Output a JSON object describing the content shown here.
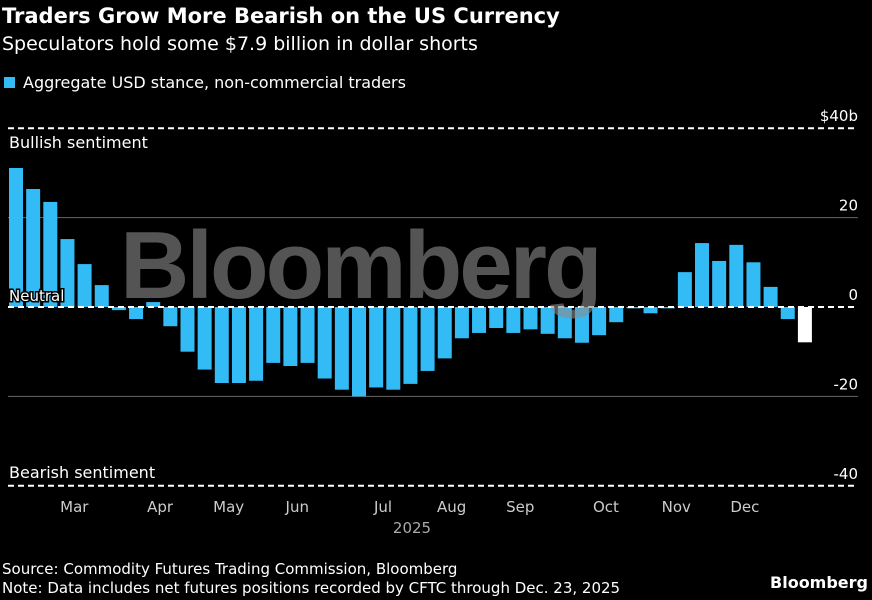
{
  "title": "Traders Grow More Bearish on the US Currency",
  "subtitle": "Speculators hold some $7.9 billion in dollar shorts",
  "source": "Source: Commodity Futures Trading Commission, Bloomberg",
  "note": "Note: Data includes net futures positions recorded by CFTC through Dec. 23, 2025",
  "brand": "Bloomberg",
  "watermark": "Bloomberg",
  "colors": {
    "bar": "#33bbf6",
    "latest": "#ffffff"
  },
  "chart_data": {
    "type": "bar",
    "title": "Traders Grow More Bearish on the US Currency",
    "legend": [
      "Aggregate USD stance, non-commercial traders"
    ],
    "ylabel": "",
    "ylim": [
      -40,
      40
    ],
    "yticks": [
      {
        "v": 40,
        "label": "$40b"
      },
      {
        "v": 20,
        "label": "20"
      },
      {
        "v": 0,
        "label": "0"
      },
      {
        "v": -20,
        "label": "-20"
      },
      {
        "v": -40,
        "label": "-40"
      }
    ],
    "annotations": {
      "bullish": "Bullish sentiment",
      "neutral": "Neutral",
      "bearish": "Bearish sentiment"
    },
    "xlabel": "2025",
    "month_ticks": [
      {
        "label": "Mar",
        "i": 3.4
      },
      {
        "label": "Apr",
        "i": 8.4
      },
      {
        "label": "May",
        "i": 12.4
      },
      {
        "label": "Jun",
        "i": 16.4
      },
      {
        "label": "Jul",
        "i": 21.4
      },
      {
        "label": "Aug",
        "i": 25.4
      },
      {
        "label": "Sep",
        "i": 29.4
      },
      {
        "label": "Oct",
        "i": 34.4
      },
      {
        "label": "Nov",
        "i": 38.5
      },
      {
        "label": "Dec",
        "i": 42.5
      }
    ],
    "values": [
      31.1,
      26.4,
      23.5,
      15.2,
      9.6,
      4.9,
      -0.7,
      -2.7,
      1.1,
      -4.3,
      -10,
      -14,
      -17,
      -17,
      -16.5,
      -12.5,
      -13.2,
      -12.5,
      -16,
      -18.5,
      -20,
      -18,
      -18.5,
      -17.2,
      -14.3,
      -11.5,
      -7,
      -5.8,
      -4.7,
      -5.8,
      -5,
      -6,
      -7,
      -8,
      -6.3,
      -3.4,
      -0.3,
      -1.4,
      -0.3,
      7.8,
      14.3,
      10.3,
      13.9,
      10,
      4.5,
      -2.7,
      -7.9
    ]
  }
}
